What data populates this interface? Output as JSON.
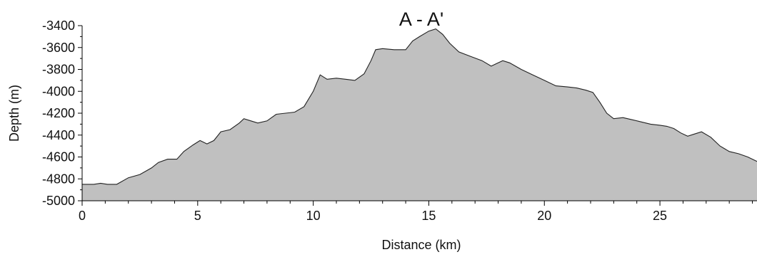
{
  "chart_data": {
    "type": "area",
    "title": "A - A'",
    "xlabel": "Distance (km)",
    "ylabel": "Depth (m)",
    "xlim": [
      0,
      29.2
    ],
    "ylim": [
      -5000,
      -3400
    ],
    "xticks": [
      0,
      5,
      10,
      15,
      20,
      25
    ],
    "yticks": [
      -3400,
      -3600,
      -3800,
      -4000,
      -4200,
      -4400,
      -4600,
      -4800,
      -5000
    ],
    "grid": false,
    "legend": "none",
    "colors": {
      "fill": "#c0c0c0",
      "line": "#222222"
    },
    "series": [
      {
        "x": [
          0,
          0.5,
          0.8,
          1.1,
          1.5,
          2.0,
          2.5,
          3.0,
          3.3,
          3.7,
          4.1,
          4.4,
          4.8,
          5.1,
          5.4,
          5.7,
          6.0,
          6.4,
          6.8,
          7.0,
          7.3,
          7.6,
          8.0,
          8.4,
          8.8,
          9.2,
          9.6,
          10.0,
          10.3,
          10.6,
          11.0,
          11.4,
          11.8,
          12.2,
          12.5,
          12.7,
          13.0,
          13.5,
          14.0,
          14.3,
          14.6,
          15.0,
          15.3,
          15.6,
          15.9,
          16.3,
          16.8,
          17.3,
          17.7,
          18.0,
          18.2,
          18.5,
          19.0,
          19.5,
          20.0,
          20.5,
          21.0,
          21.4,
          21.8,
          22.1,
          22.4,
          22.7,
          23.0,
          23.4,
          23.8,
          24.2,
          24.6,
          25.0,
          25.3,
          25.6,
          25.9,
          26.2,
          26.5,
          26.8,
          27.2,
          27.6,
          28.0,
          28.4,
          28.8,
          29.2
        ],
        "y": [
          -4850,
          -4850,
          -4840,
          -4850,
          -4850,
          -4790,
          -4760,
          -4700,
          -4650,
          -4620,
          -4620,
          -4550,
          -4490,
          -4450,
          -4480,
          -4450,
          -4370,
          -4350,
          -4290,
          -4250,
          -4270,
          -4290,
          -4270,
          -4210,
          -4200,
          -4190,
          -4140,
          -4000,
          -3850,
          -3890,
          -3880,
          -3890,
          -3900,
          -3840,
          -3720,
          -3620,
          -3610,
          -3620,
          -3620,
          -3540,
          -3500,
          -3450,
          -3430,
          -3480,
          -3560,
          -3640,
          -3680,
          -3720,
          -3770,
          -3740,
          -3720,
          -3740,
          -3800,
          -3850,
          -3900,
          -3950,
          -3960,
          -3970,
          -3990,
          -4010,
          -4100,
          -4200,
          -4250,
          -4240,
          -4260,
          -4280,
          -4300,
          -4310,
          -4320,
          -4340,
          -4380,
          -4410,
          -4390,
          -4370,
          -4420,
          -4500,
          -4550,
          -4570,
          -4600,
          -4640
        ]
      }
    ]
  }
}
